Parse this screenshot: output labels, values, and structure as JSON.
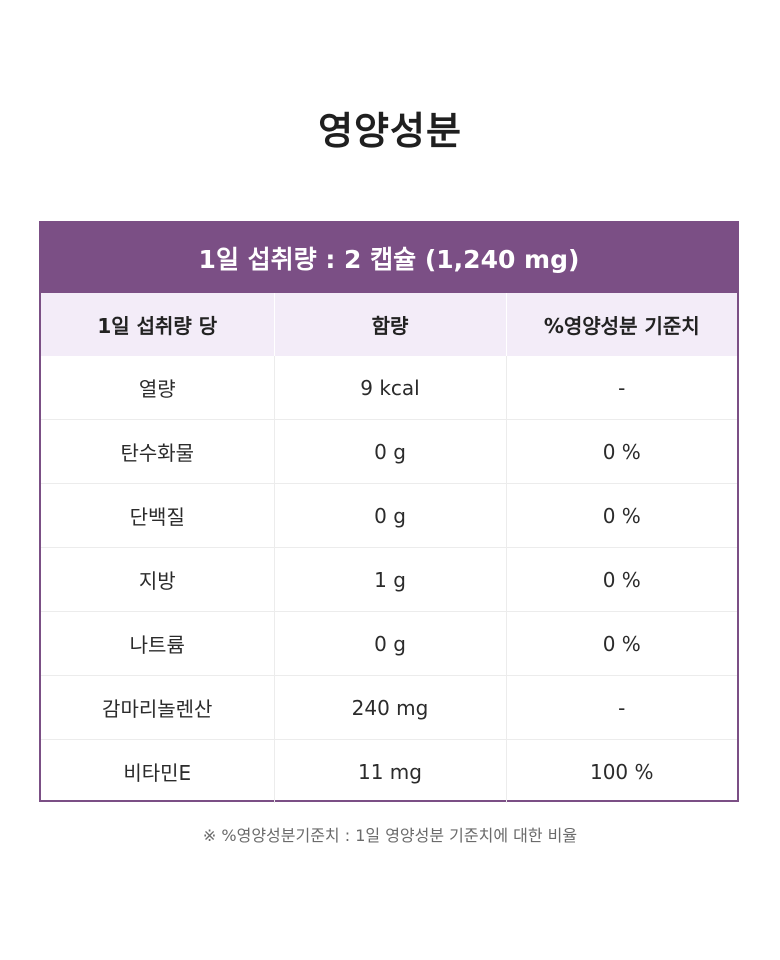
{
  "title": "영양성분",
  "serving": "1일 섭취량 : 2 캡슐 (1,240 mg)",
  "table": {
    "headers": [
      "1일 섭취량 당",
      "함량",
      "%영양성분 기준치"
    ],
    "rows": [
      [
        "열량",
        "9 kcal",
        "-"
      ],
      [
        "탄수화물",
        "0 g",
        "0 %"
      ],
      [
        "단백질",
        "0 g",
        "0 %"
      ],
      [
        "지방",
        "1 g",
        "0 %"
      ],
      [
        "나트륨",
        "0 g",
        "0 %"
      ],
      [
        "감마리놀렌산",
        "240 mg",
        "-"
      ],
      [
        "비타민E",
        "11 mg",
        "100 %"
      ]
    ]
  },
  "footnote": "※ %영양성분기준치 : 1일 영양성분 기준치에 대한 비율"
}
